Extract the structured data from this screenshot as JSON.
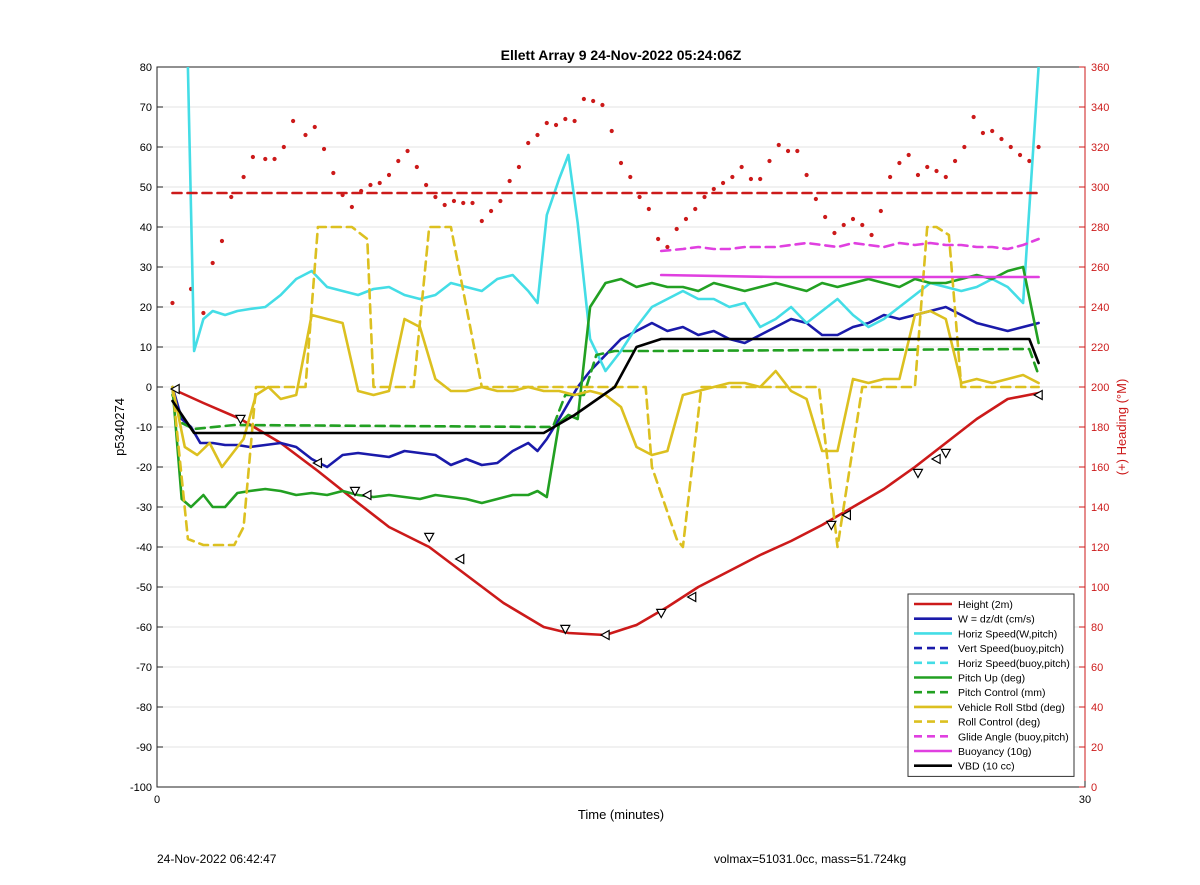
{
  "footer": {
    "left": "24-Nov-2022 06:42:47",
    "right": "volmax=51031.0cc, mass=51.724kg"
  },
  "chart_data": {
    "type": "line",
    "title": "Ellett Array 9 24-Nov-2022 05:24:06Z",
    "xlabel": "Time (minutes)",
    "ylabel_left": "p5340274",
    "ylabel_right": "(+) Heading (°M)",
    "xlim": [
      0,
      30
    ],
    "ylim_left": [
      -100,
      80
    ],
    "ylim_right": [
      0,
      360
    ],
    "xticks": [
      "0",
      "30"
    ],
    "yticks_left": [
      "-100",
      "-90",
      "-80",
      "-70",
      "-60",
      "-50",
      "-40",
      "-30",
      "-20",
      "-10",
      "0",
      "10",
      "20",
      "30",
      "40",
      "50",
      "60",
      "70",
      "80"
    ],
    "yticks_right": [
      "0",
      "20",
      "40",
      "60",
      "80",
      "100",
      "120",
      "140",
      "160",
      "180",
      "200",
      "220",
      "240",
      "260",
      "280",
      "300",
      "320",
      "340",
      "360"
    ],
    "grid": true,
    "legend_position": "bottom-right",
    "colors": {
      "red": "#cc1a1a",
      "blue": "#1a1aaa",
      "cyan": "#44dde6",
      "green": "#22a022",
      "yellow": "#dcc020",
      "magenta": "#e040e0",
      "black": "#000000",
      "right_axis": "#cc1a1a"
    },
    "series": [
      {
        "name": "Height (2m)",
        "color": "red",
        "style": "solid",
        "x": [
          0.5,
          1.5,
          2.7,
          4.0,
          5.2,
          6.5,
          7.5,
          8.8,
          10.0,
          11.2,
          12.5,
          13.3,
          14.5,
          15.5,
          16.5,
          17.5,
          18.5,
          19.5,
          20.5,
          21.5,
          22.5,
          23.5,
          24.5,
          25.5,
          26.5,
          27.5,
          28.5
        ],
        "y": [
          -0.5,
          -4,
          -8,
          -14,
          -21,
          -29,
          -35,
          -40,
          -47,
          -54,
          -60,
          -61.5,
          -62,
          -59.5,
          -55,
          -50,
          -46,
          -42,
          -38.5,
          -34.5,
          -30,
          -25.5,
          -20,
          -14,
          -8,
          -3,
          -1.5
        ]
      },
      {
        "name": "W = dz/dt (cm/s)",
        "color": "blue",
        "style": "solid",
        "x": [
          0.5,
          0.8,
          1.1,
          1.4,
          1.8,
          2.2,
          2.6,
          3.0,
          3.5,
          4.0,
          4.5,
          5.0,
          5.5,
          6.0,
          6.5,
          7.0,
          7.5,
          8.0,
          8.5,
          9.0,
          9.5,
          10.0,
          10.5,
          11.0,
          11.5,
          12.0,
          12.3,
          12.6,
          13.0,
          13.3,
          13.6,
          14.0,
          14.5,
          15.0,
          15.5,
          16.0,
          16.5,
          17.0,
          17.5,
          18.0,
          18.5,
          19.0,
          19.5,
          20.0,
          20.5,
          21.0,
          21.5,
          22.0,
          22.5,
          23.0,
          23.5,
          24.0,
          24.5,
          25.0,
          25.5,
          26.0,
          26.5,
          27.0,
          27.5,
          28.0,
          28.5
        ],
        "y": [
          0,
          -8,
          -10,
          -14,
          -14,
          -14.5,
          -14.5,
          -15,
          -14.5,
          -14,
          -15,
          -18,
          -20,
          -17,
          -16.5,
          -17,
          -17.5,
          -16,
          -16.5,
          -17,
          -19.5,
          -18,
          -19.5,
          -19,
          -16,
          -14,
          -16,
          -13,
          -8,
          -4,
          0,
          4,
          8,
          12,
          14,
          16,
          14,
          15,
          13,
          14,
          12,
          11,
          13,
          15,
          17,
          16,
          13,
          13,
          15,
          16,
          18,
          17,
          18,
          19,
          20,
          18,
          16,
          15,
          14,
          15,
          16
        ]
      },
      {
        "name": "Horiz Speed(W,pitch)",
        "color": "cyan",
        "style": "solid",
        "x": [
          1.0,
          1.2,
          1.5,
          1.8,
          2.2,
          2.6,
          3.0,
          3.5,
          4.0,
          4.5,
          5.0,
          5.5,
          6.0,
          6.5,
          7.0,
          7.5,
          8.0,
          8.5,
          9.0,
          9.5,
          10.0,
          10.5,
          11.0,
          11.5,
          12.0,
          12.3,
          12.6,
          13.0,
          13.3,
          13.6,
          14.0,
          14.5,
          15.0,
          15.5,
          16.0,
          16.5,
          17.0,
          17.5,
          18.0,
          18.5,
          19.0,
          19.5,
          20.0,
          20.5,
          21.0,
          21.5,
          22.0,
          22.5,
          23.0,
          23.5,
          24.0,
          24.5,
          25.0,
          25.5,
          26.0,
          26.5,
          27.0,
          27.5,
          28.0,
          28.5
        ],
        "y": [
          80,
          9,
          17,
          19,
          18,
          19,
          19.5,
          20,
          23,
          27,
          29,
          25,
          24,
          23,
          24.5,
          25,
          23,
          22,
          23,
          26,
          25,
          24,
          27,
          28,
          24,
          21,
          43,
          52,
          58,
          41,
          12,
          4,
          9,
          15,
          20,
          22,
          24,
          22,
          22,
          20,
          21,
          15,
          17,
          20,
          16,
          19,
          22,
          18,
          15,
          17,
          20,
          23,
          26,
          25,
          24,
          25,
          27,
          25,
          21,
          80
        ]
      },
      {
        "name": "Vert Speed(buoy,pitch)",
        "color": "blue",
        "style": "dashed",
        "x": [],
        "y": []
      },
      {
        "name": "Horiz Speed(buoy,pitch)",
        "color": "cyan",
        "style": "dashed",
        "x": [],
        "y": []
      },
      {
        "name": "Pitch Up (deg)",
        "color": "green",
        "style": "solid",
        "x": [
          0.5,
          0.8,
          1.1,
          1.5,
          1.8,
          2.2,
          2.6,
          3.0,
          3.5,
          4.0,
          4.5,
          5.0,
          5.5,
          6.0,
          6.5,
          7.0,
          7.5,
          8.0,
          8.5,
          9.0,
          9.5,
          10.0,
          10.5,
          11.0,
          11.5,
          12.0,
          12.3,
          12.6,
          13.0,
          13.3,
          13.6,
          14.0,
          14.5,
          15.0,
          15.5,
          16.0,
          16.5,
          17.0,
          17.5,
          18.0,
          18.5,
          19.0,
          19.5,
          20.0,
          20.5,
          21.0,
          21.5,
          22.0,
          22.5,
          23.0,
          23.5,
          24.0,
          24.5,
          25.0,
          25.5,
          26.0,
          26.5,
          27.0,
          27.5,
          28.0,
          28.5
        ],
        "y": [
          0,
          -28,
          -30,
          -27,
          -30,
          -30,
          -26.5,
          -26,
          -25.5,
          -26,
          -27,
          -26.5,
          -27,
          -26,
          -27,
          -27.5,
          -27,
          -27.5,
          -28,
          -27,
          -27.5,
          -28,
          -29,
          -28,
          -27,
          -27,
          -26,
          -27.5,
          -9,
          -7,
          -8,
          20,
          26,
          27,
          25,
          26,
          25,
          25,
          24,
          26,
          25,
          24,
          25,
          26,
          25,
          24,
          26,
          25,
          26,
          27,
          26,
          25,
          27,
          26,
          26,
          27,
          28,
          27,
          29,
          30,
          11
        ]
      },
      {
        "name": "Pitch Control (mm)",
        "color": "green",
        "style": "dashed",
        "x": [
          0.5,
          0.8,
          1.2,
          2.5,
          12.8,
          13.2,
          13.8,
          14.2,
          14.8,
          16.0,
          28.2,
          28.5
        ],
        "y": [
          -2,
          -9,
          -10.5,
          -9.5,
          -10,
          -2,
          -2,
          8,
          9,
          9,
          9.5,
          3
        ]
      },
      {
        "name": "Vehicle Roll Stbd (deg)",
        "color": "yellow",
        "style": "solid",
        "x": [
          0.5,
          0.9,
          1.3,
          1.7,
          2.1,
          2.5,
          2.8,
          3.2,
          3.6,
          4.0,
          4.5,
          5.0,
          5.5,
          6.0,
          6.5,
          7.0,
          7.5,
          8.0,
          8.5,
          9.0,
          9.5,
          10.0,
          10.5,
          11.0,
          11.5,
          12.0,
          12.5,
          13.0,
          13.5,
          14.0,
          14.5,
          15.0,
          15.5,
          16.0,
          16.5,
          17.0,
          17.5,
          18.0,
          18.5,
          19.0,
          19.5,
          20.0,
          20.5,
          21.0,
          21.5,
          22.0,
          22.5,
          23.0,
          23.5,
          24.0,
          24.5,
          25.0,
          25.5,
          26.0,
          26.5,
          27.0,
          27.5,
          28.0,
          28.5
        ],
        "y": [
          0,
          -15,
          -17,
          -14,
          -20,
          -16,
          -13,
          -2,
          0,
          -3,
          -2,
          18,
          17,
          16,
          -1,
          -2,
          -1,
          17,
          15,
          2,
          -1,
          -1,
          0,
          -1,
          -1,
          0,
          -1,
          -1,
          -2,
          -1,
          -2,
          -5,
          -15,
          -17,
          -16,
          -2,
          -1,
          0,
          1,
          1,
          0,
          4,
          -1,
          -3,
          -16,
          -16,
          2,
          1,
          2,
          2,
          18,
          19,
          17,
          1,
          2,
          1,
          2,
          3,
          1
        ]
      },
      {
        "name": "Roll Control (deg)",
        "color": "yellow",
        "style": "dashed",
        "x": [
          0.5,
          1.0,
          1.5,
          2.5,
          2.8,
          3.2,
          4.8,
          5.2,
          6.0,
          6.3,
          6.8,
          7.0,
          8.3,
          8.8,
          9.5,
          9.7,
          10.5,
          12.8,
          13.5,
          13.8,
          14.5,
          15.8,
          16.0,
          16.8,
          17.0,
          17.3,
          17.6,
          19.5,
          21.4,
          21.7,
          22.0,
          22.4,
          22.8,
          24.5,
          24.9,
          25.2,
          25.6,
          26.0,
          28.5
        ],
        "y": [
          0,
          -38,
          -39.5,
          -39.5,
          -35,
          0,
          0,
          40,
          40,
          40,
          37,
          0,
          0,
          40,
          40,
          32,
          0,
          0,
          0,
          0,
          0,
          0,
          -20,
          -38,
          -40,
          -20,
          0,
          0,
          0,
          -20,
          -40,
          -20,
          0,
          0,
          40,
          40,
          38,
          0,
          0
        ]
      },
      {
        "name": "Glide Angle (buoy,pitch)",
        "color": "magenta",
        "style": "dashed",
        "x": [
          16.3,
          17.0,
          17.5,
          18.0,
          18.5,
          19.0,
          19.5,
          20.0,
          20.5,
          21.0,
          21.5,
          22.0,
          22.5,
          23.0,
          23.5,
          24.0,
          24.5,
          25.0,
          25.5,
          26.0,
          26.5,
          27.0,
          27.5,
          28.0,
          28.5
        ],
        "y": [
          34,
          34.5,
          35,
          34.5,
          34.5,
          35,
          35,
          35,
          35.5,
          36,
          35.5,
          35,
          36,
          35.5,
          35,
          36,
          35.5,
          36,
          35.5,
          35.5,
          35,
          35,
          34.5,
          35.5,
          37
        ]
      },
      {
        "name": "Buoyancy (10g)",
        "color": "magenta",
        "style": "solid",
        "x": [
          16.3,
          20.0,
          24.0,
          28.5
        ],
        "y": [
          28,
          27.5,
          27.5,
          27.5
        ]
      },
      {
        "name": "VBD (10 cc)",
        "color": "black",
        "style": "solid",
        "x": [
          0.5,
          1.2,
          12.5,
          13.5,
          14.8,
          15.5,
          16.3,
          28.2,
          28.5
        ],
        "y": [
          -3.5,
          -11.5,
          -11.5,
          -7,
          0,
          10,
          12,
          12,
          6
        ]
      },
      {
        "name": "",
        "axis": "right",
        "color": "red",
        "style": "dashed-horizontal",
        "x": [
          0.5,
          28.5
        ],
        "y": [
          297,
          297
        ]
      }
    ],
    "heading_points": {
      "axis": "right",
      "color": "red",
      "style": "dots",
      "x": [
        0.5,
        1.1,
        1.5,
        1.8,
        2.1,
        2.4,
        2.8,
        3.1,
        3.5,
        3.8,
        4.1,
        4.4,
        4.8,
        5.1,
        5.4,
        5.7,
        6.0,
        6.3,
        6.6,
        6.9,
        7.2,
        7.5,
        7.8,
        8.1,
        8.4,
        8.7,
        9.0,
        9.3,
        9.6,
        9.9,
        10.2,
        10.5,
        10.8,
        11.1,
        11.4,
        11.7,
        12.0,
        12.3,
        12.6,
        12.9,
        13.2,
        13.5,
        13.8,
        14.1,
        14.4,
        14.7,
        15.0,
        15.3,
        15.6,
        15.9,
        16.2,
        16.5,
        16.8,
        17.1,
        17.4,
        17.7,
        18.0,
        18.3,
        18.6,
        18.9,
        19.2,
        19.5,
        19.8,
        20.1,
        20.4,
        20.7,
        21.0,
        21.3,
        21.6,
        21.9,
        22.2,
        22.5,
        22.8,
        23.1,
        23.4,
        23.7,
        24.0,
        24.3,
        24.6,
        24.9,
        25.2,
        25.5,
        25.8,
        26.1,
        26.4,
        26.7,
        27.0,
        27.3,
        27.6,
        27.9,
        28.2,
        28.5
      ],
      "y": [
        242,
        249,
        237,
        262,
        273,
        295,
        305,
        315,
        314,
        314,
        320,
        333,
        326,
        330,
        319,
        307,
        296,
        290,
        298,
        301,
        302,
        306,
        313,
        318,
        310,
        301,
        295,
        291,
        293,
        292,
        292,
        283,
        288,
        293,
        303,
        310,
        322,
        326,
        332,
        331,
        334,
        333,
        344,
        343,
        341,
        328,
        312,
        305,
        295,
        289,
        274,
        270,
        279,
        284,
        289,
        295,
        299,
        302,
        305,
        310,
        304,
        304,
        313,
        321,
        318,
        318,
        306,
        294,
        285,
        277,
        281,
        284,
        281,
        276,
        288,
        305,
        312,
        316,
        306,
        310,
        308,
        305,
        313,
        320,
        335,
        327,
        328,
        324,
        320,
        316,
        313,
        320
      ]
    },
    "markers": {
      "note": "triangle markers along Height (2m)",
      "x": [
        0.6,
        2.7,
        5.2,
        6.4,
        6.8,
        8.8,
        9.8,
        13.2,
        14.5,
        16.3,
        17.3,
        21.8,
        22.3,
        24.6,
        25.2,
        25.5,
        28.5
      ],
      "y": [
        -0.5,
        -8,
        -19,
        -26,
        -27,
        -37.5,
        -43,
        -60.5,
        -62,
        -56.5,
        -52.5,
        -34.5,
        -32,
        -21.5,
        -18,
        -16.5,
        -2
      ]
    }
  }
}
